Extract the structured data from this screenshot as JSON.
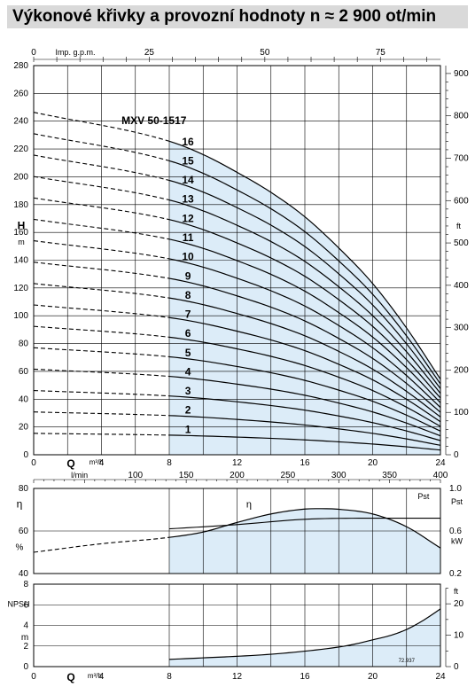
{
  "page": {
    "title": "Výkonové křivky a provozní hodnoty n ≈ 2 900 ot/min",
    "code": "72.937"
  },
  "colors": {
    "fill": "#dcecf8",
    "line": "#000000",
    "title_bg": "#d9d9d9"
  },
  "chart_data": [
    {
      "type": "line",
      "name": "head",
      "model_label": "MXV 50-1517",
      "xlabel": "Q m³/h",
      "xlabel_Q": "Q",
      "xlabel_unit": "m³/h",
      "ylabel_H": "H",
      "ylabel_m": "m",
      "ylabel_right": "ft",
      "top_axis_label": "Imp. g.p.m.",
      "second_axis_label": "l/min",
      "xlim": [
        0,
        24
      ],
      "ylim": [
        0,
        280
      ],
      "x_ticks": [
        "0",
        "4",
        "8",
        "12",
        "16",
        "20",
        "24"
      ],
      "y_ticks": [
        "0",
        "20",
        "40",
        "60",
        "80",
        "100",
        "120",
        "140",
        "160",
        "180",
        "200",
        "220",
        "240",
        "260",
        "280"
      ],
      "gpm_ticks": [
        {
          "value": 0,
          "label": "0"
        },
        {
          "value": 25,
          "label": "25"
        },
        {
          "value": 50,
          "label": "50"
        },
        {
          "value": 75,
          "label": "75"
        }
      ],
      "ft_ticks": [
        {
          "value": 0,
          "label": "0"
        },
        {
          "value": 100,
          "label": "100"
        },
        {
          "value": 200,
          "label": "200"
        },
        {
          "value": 300,
          "label": "300"
        },
        {
          "value": 400,
          "label": "400"
        },
        {
          "value": 500,
          "label": "500"
        },
        {
          "value": 600,
          "label": "600"
        },
        {
          "value": 700,
          "label": "700"
        },
        {
          "value": 800,
          "label": "800"
        },
        {
          "value": 900,
          "label": "900"
        }
      ],
      "lmin_ticks": [
        {
          "value": 100,
          "label": "100"
        },
        {
          "value": 150,
          "label": "150"
        },
        {
          "value": 200,
          "label": "200"
        },
        {
          "value": 250,
          "label": "250"
        },
        {
          "value": 300,
          "label": "300"
        },
        {
          "value": 350,
          "label": "350"
        },
        {
          "value": 400,
          "label": "400"
        }
      ],
      "operating_range": [
        8,
        24
      ],
      "stage_head_points": {
        "x": [
          0,
          8,
          10,
          12,
          14,
          16,
          18,
          20,
          22,
          24
        ],
        "y": [
          15.4,
          14.1,
          13.5,
          12.7,
          11.8,
          10.7,
          9.3,
          7.7,
          5.7,
          3.4
        ]
      },
      "series": [
        {
          "name": "1"
        },
        {
          "name": "2"
        },
        {
          "name": "3"
        },
        {
          "name": "4"
        },
        {
          "name": "5"
        },
        {
          "name": "6"
        },
        {
          "name": "7"
        },
        {
          "name": "8"
        },
        {
          "name": "9"
        },
        {
          "name": "10"
        },
        {
          "name": "11"
        },
        {
          "name": "12"
        },
        {
          "name": "13"
        },
        {
          "name": "14"
        },
        {
          "name": "15"
        },
        {
          "name": "16"
        }
      ]
    },
    {
      "type": "line",
      "name": "efficiency",
      "ylabel_left": "η",
      "ylabel_left_unit": "%",
      "ylabel_right": "Pst",
      "ylabel_right_unit": "kW",
      "xlim": [
        0,
        24
      ],
      "ylim_left": [
        40,
        80
      ],
      "ylim_right": [
        0.2,
        1.0
      ],
      "left_ticks": [
        "40",
        "60",
        "80"
      ],
      "right_ticks": [
        "0.2",
        "0.6",
        "1.0"
      ],
      "series": [
        {
          "name": "η",
          "x": [
            0,
            4,
            8,
            10,
            12,
            14,
            16,
            17,
            18,
            20,
            22,
            24
          ],
          "y": [
            50,
            54,
            57,
            59.5,
            64,
            68,
            70.3,
            70.5,
            70.2,
            68,
            62,
            52
          ]
        },
        {
          "name": "Pst",
          "x": [
            8,
            12,
            16,
            20,
            24
          ],
          "y": [
            0.62,
            0.66,
            0.71,
            0.72,
            0.72
          ]
        }
      ]
    },
    {
      "type": "line",
      "name": "npsh",
      "ylabel": "NPSH",
      "ylabel_unit": "m",
      "ylabel_right": "ft",
      "xlabel_Q": "Q",
      "xlabel_unit": "m³/h",
      "xlim": [
        0,
        24
      ],
      "ylim": [
        0,
        8
      ],
      "x_ticks": [
        "0",
        "4",
        "8",
        "12",
        "16",
        "20",
        "24"
      ],
      "y_ticks": [
        "0",
        "2",
        "4",
        "6",
        "8"
      ],
      "ft_ticks": [
        {
          "value": 0,
          "label": "0"
        },
        {
          "value": 10,
          "label": "10"
        },
        {
          "value": 20,
          "label": "20"
        }
      ],
      "series": [
        {
          "name": "NPSH",
          "x": [
            8,
            10,
            12,
            14,
            16,
            18,
            19,
            20,
            21,
            22,
            23,
            24
          ],
          "y": [
            0.7,
            0.85,
            1.0,
            1.2,
            1.5,
            1.9,
            2.2,
            2.6,
            3.0,
            3.6,
            4.5,
            5.6
          ]
        }
      ]
    }
  ]
}
